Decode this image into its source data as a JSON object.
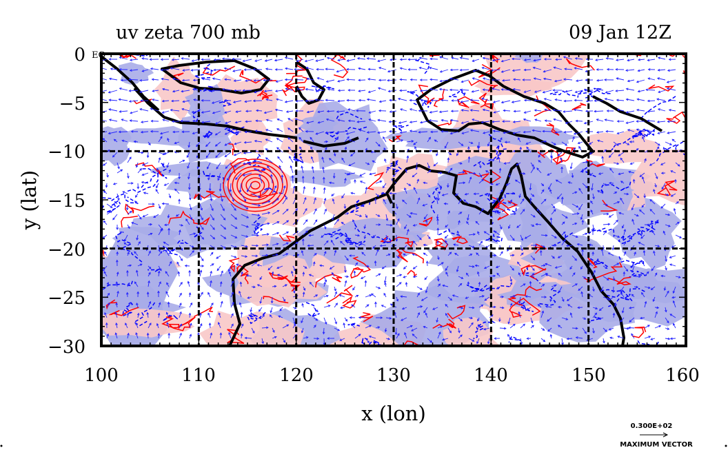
{
  "title_left": "uv zeta 700 mb",
  "title_right": "09 Jan 12Z",
  "eq_label": "EQ",
  "x_axis": {
    "label": "x (lon)",
    "ticks": [
      "100",
      "110",
      "120",
      "130",
      "140",
      "150",
      "160"
    ],
    "range": [
      100,
      160
    ]
  },
  "y_axis": {
    "label": "y (lat)",
    "ticks": [
      "0",
      "−5",
      "−10",
      "−15",
      "−20",
      "−25",
      "−30"
    ],
    "range": [
      -30,
      0
    ]
  },
  "vector_key": {
    "magnitude": "0.300E+02",
    "label": "MAXIMUM VECTOR"
  },
  "colors": {
    "positive_fill": "#f8c8c8",
    "negative_fill": "#a8ace8",
    "positive_contour": "#ff0000",
    "negative_contour": "#0000ff",
    "vectors": "#2020ff",
    "coastline": "#000000",
    "grid": "#000000"
  },
  "gridlines": {
    "lon": [
      110,
      120,
      130,
      140,
      150
    ],
    "lat": [
      -10,
      -20
    ]
  },
  "features": {
    "cyclone_center": [
      115.8,
      -13.5
    ]
  }
}
